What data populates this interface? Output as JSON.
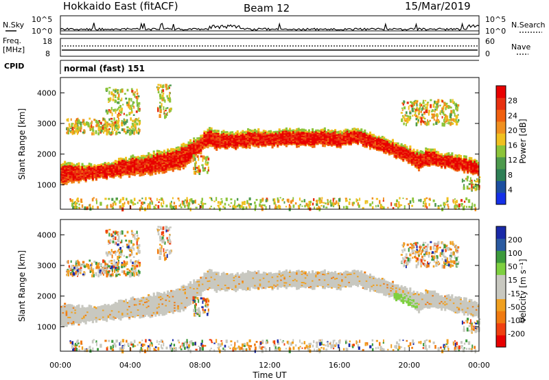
{
  "header": {
    "station": "Hokkaido East (fitACF)",
    "beam": "Beam 12",
    "date": "15/Mar/2019"
  },
  "noise_panel": {
    "left_label": "N.Sky",
    "right_label": "N.Search",
    "ticks": [
      "10^5",
      "10^0"
    ]
  },
  "freq_panel": {
    "left_label_1": "Freq.",
    "left_label_2": "[MHz]",
    "ticks": [
      "18",
      "8"
    ],
    "right_ticks": [
      "60",
      "0"
    ],
    "right_label": "Nave"
  },
  "cpid_panel": {
    "label": "CPID",
    "value": "normal (fast) 151"
  },
  "colors": {
    "power_scale": [
      "#1530e8",
      "#1c4fa0",
      "#2e7f56",
      "#4d9a4d",
      "#8cc43a",
      "#f0c020",
      "#f09020",
      "#f06010",
      "#e83010",
      "#e80000"
    ],
    "velocity_scale": [
      "#e80000",
      "#f04010",
      "#f07a10",
      "#f0a020",
      "#c8c8c0",
      "#c8c8c0",
      "#7ed040",
      "#3d9a3d",
      "#2a5aa0",
      "#1a2aa8"
    ]
  },
  "chart_data": [
    {
      "type": "heatmap",
      "name": "power",
      "ylabel": "Slant Range [km]",
      "yticks": [
        "1000",
        "2000",
        "3000",
        "4000"
      ],
      "ylim": [
        200,
        4500
      ],
      "colorbar_label": "Power [dB]",
      "colorbar_ticks": [
        "4",
        "8",
        "12",
        "16",
        "20",
        "24",
        "28"
      ],
      "colorbar_range": [
        0,
        32
      ],
      "echo_band": {
        "time_hours": [
          0,
          1,
          2,
          3,
          4,
          5,
          6,
          7,
          8,
          8.5,
          9,
          10,
          11,
          12,
          13,
          14,
          15,
          16,
          17,
          18,
          19,
          20,
          20.5,
          21,
          22,
          23,
          24
        ],
        "upper_km": [
          1700,
          1650,
          1650,
          1750,
          1900,
          2000,
          2100,
          2300,
          2600,
          2900,
          2700,
          2700,
          2800,
          2750,
          2800,
          2750,
          2800,
          2750,
          2850,
          2600,
          2400,
          2200,
          2050,
          2150,
          2000,
          1900,
          1750
        ],
        "lower_km": [
          1000,
          1100,
          1200,
          1250,
          1300,
          1350,
          1400,
          1550,
          2050,
          2300,
          2150,
          2200,
          2250,
          2250,
          2300,
          2250,
          2300,
          2250,
          2350,
          2150,
          1950,
          1700,
          1450,
          1650,
          1550,
          1450,
          1300
        ]
      }
    },
    {
      "type": "heatmap",
      "name": "velocity",
      "ylabel": "Slant Range [km]",
      "yticks": [
        "1000",
        "2000",
        "3000",
        "4000"
      ],
      "ylim": [
        200,
        4500
      ],
      "colorbar_label": "Velocity [m s⁻¹]",
      "colorbar_ticks": [
        "200",
        "100",
        "50",
        "15",
        "-15",
        "-50",
        "-100",
        "-200"
      ],
      "xlabel": "Time UT",
      "xticks": [
        "00:00",
        "04:00",
        "08:00",
        "12:00",
        "16:00",
        "20:00",
        "00:00"
      ],
      "xlim": [
        0,
        24
      ]
    }
  ]
}
